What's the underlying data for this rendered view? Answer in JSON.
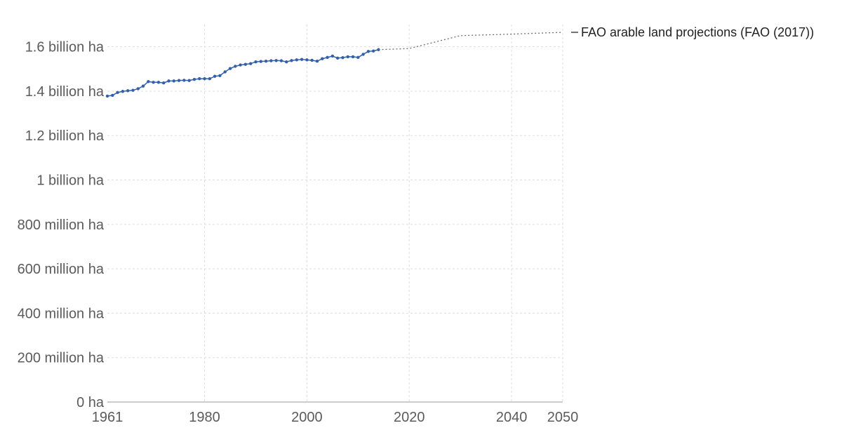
{
  "chart_data": {
    "type": "line",
    "title": "",
    "xlabel": "",
    "ylabel": "",
    "xlim": [
      1961,
      2050
    ],
    "ylim": [
      0,
      1700
    ],
    "grid": true,
    "x_ticks": [
      1961,
      1980,
      2000,
      2020,
      2040,
      2050
    ],
    "y_ticks": [
      {
        "value": 0,
        "label": "0 ha"
      },
      {
        "value": 200,
        "label": "200 million ha"
      },
      {
        "value": 400,
        "label": "400 million ha"
      },
      {
        "value": 600,
        "label": "600 million ha"
      },
      {
        "value": 800,
        "label": "800 million ha"
      },
      {
        "value": 1000,
        "label": "1 billion ha"
      },
      {
        "value": 1200,
        "label": "1.2 billion ha"
      },
      {
        "value": 1400,
        "label": "1.4 billion ha"
      },
      {
        "value": 1600,
        "label": "1.6 billion ha"
      }
    ],
    "series": [
      {
        "color": "#3360a9",
        "style": "solid-markers",
        "x": [
          1961,
          1962,
          1963,
          1964,
          1965,
          1966,
          1967,
          1968,
          1969,
          1970,
          1971,
          1972,
          1973,
          1974,
          1975,
          1976,
          1977,
          1978,
          1979,
          1980,
          1981,
          1982,
          1983,
          1984,
          1985,
          1986,
          1987,
          1988,
          1989,
          1990,
          1991,
          1992,
          1993,
          1994,
          1995,
          1996,
          1997,
          1998,
          1999,
          2000,
          2001,
          2002,
          2003,
          2004,
          2005,
          2006,
          2007,
          2008,
          2009,
          2010,
          2011,
          2012,
          2013,
          2014
        ],
        "values": [
          1378,
          1381,
          1394,
          1399,
          1402,
          1404,
          1411,
          1423,
          1443,
          1440,
          1440,
          1437,
          1446,
          1446,
          1448,
          1449,
          1448,
          1453,
          1456,
          1456,
          1456,
          1467,
          1470,
          1487,
          1502,
          1512,
          1518,
          1521,
          1524,
          1532,
          1534,
          1535,
          1537,
          1538,
          1537,
          1532,
          1538,
          1541,
          1543,
          1541,
          1539,
          1535,
          1546,
          1552,
          1558,
          1549,
          1551,
          1555,
          1555,
          1552,
          1566,
          1579,
          1581,
          1587
        ]
      },
      {
        "name": "FAO arable land projections (FAO (2017))",
        "color": "#6e6e6e",
        "style": "dotted",
        "x": [
          2014,
          2020,
          2030,
          2040,
          2050
        ],
        "values": [
          1587,
          1592,
          1650,
          1657,
          1665
        ]
      }
    ]
  }
}
